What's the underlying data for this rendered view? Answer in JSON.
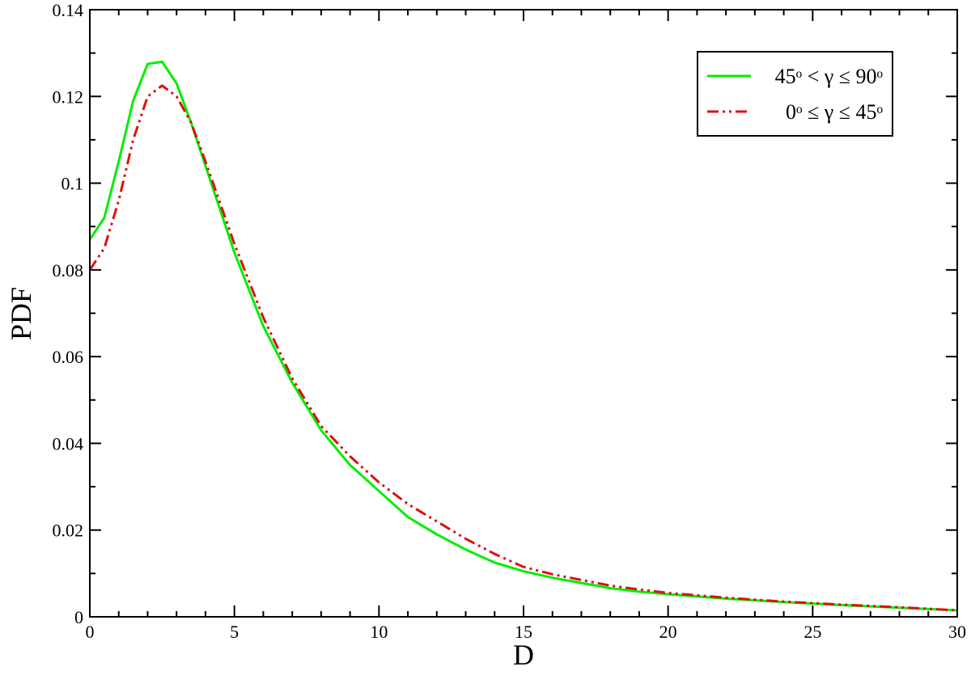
{
  "chart_data": {
    "type": "line",
    "x_label": "D",
    "y_label": "PDF",
    "x": [
      0,
      0.5,
      1,
      1.5,
      2,
      2.5,
      3,
      3.5,
      4,
      5,
      6,
      7,
      8,
      9,
      10,
      11,
      12,
      13,
      14,
      15,
      16,
      17,
      18,
      19,
      20,
      22,
      24,
      26,
      28,
      30
    ],
    "series": [
      {
        "name": "45ᵒ < γ ≤ 90ᵒ",
        "color": "#00ee00",
        "dash": "solid",
        "values": [
          0.087,
          0.092,
          0.105,
          0.119,
          0.1275,
          0.128,
          0.123,
          0.114,
          0.104,
          0.084,
          0.067,
          0.054,
          0.043,
          0.035,
          0.029,
          0.023,
          0.019,
          0.0155,
          0.0125,
          0.0105,
          0.009,
          0.0078,
          0.0066,
          0.0058,
          0.0052,
          0.0042,
          0.0034,
          0.0027,
          0.0021,
          0.0015
        ]
      },
      {
        "name": "0ᵒ ≤ γ ≤ 45ᵒ",
        "color": "#dd1111",
        "dash": "dash-dot-dot",
        "values": [
          0.08,
          0.085,
          0.096,
          0.11,
          0.12,
          0.1225,
          0.12,
          0.114,
          0.105,
          0.086,
          0.069,
          0.055,
          0.044,
          0.037,
          0.031,
          0.026,
          0.022,
          0.018,
          0.0145,
          0.0115,
          0.0098,
          0.0085,
          0.0072,
          0.0063,
          0.0055,
          0.0044,
          0.0035,
          0.0028,
          0.0022,
          0.0015
        ]
      }
    ],
    "xlim": [
      0,
      30
    ],
    "ylim": [
      0,
      0.14
    ],
    "xticks": [
      0,
      5,
      10,
      15,
      20,
      25,
      30
    ],
    "yticks": [
      0,
      0.02,
      0.04,
      0.06,
      0.08,
      0.1,
      0.12,
      0.14
    ],
    "xminorticks": [
      1,
      2,
      3,
      4,
      6,
      7,
      8,
      9,
      11,
      12,
      13,
      14,
      16,
      17,
      18,
      19,
      21,
      22,
      23,
      24,
      26,
      27,
      28,
      29
    ],
    "yminorticks": [
      0.01,
      0.03,
      0.05,
      0.07,
      0.09,
      0.11,
      0.13
    ],
    "legend": "upper right",
    "grid": false
  }
}
